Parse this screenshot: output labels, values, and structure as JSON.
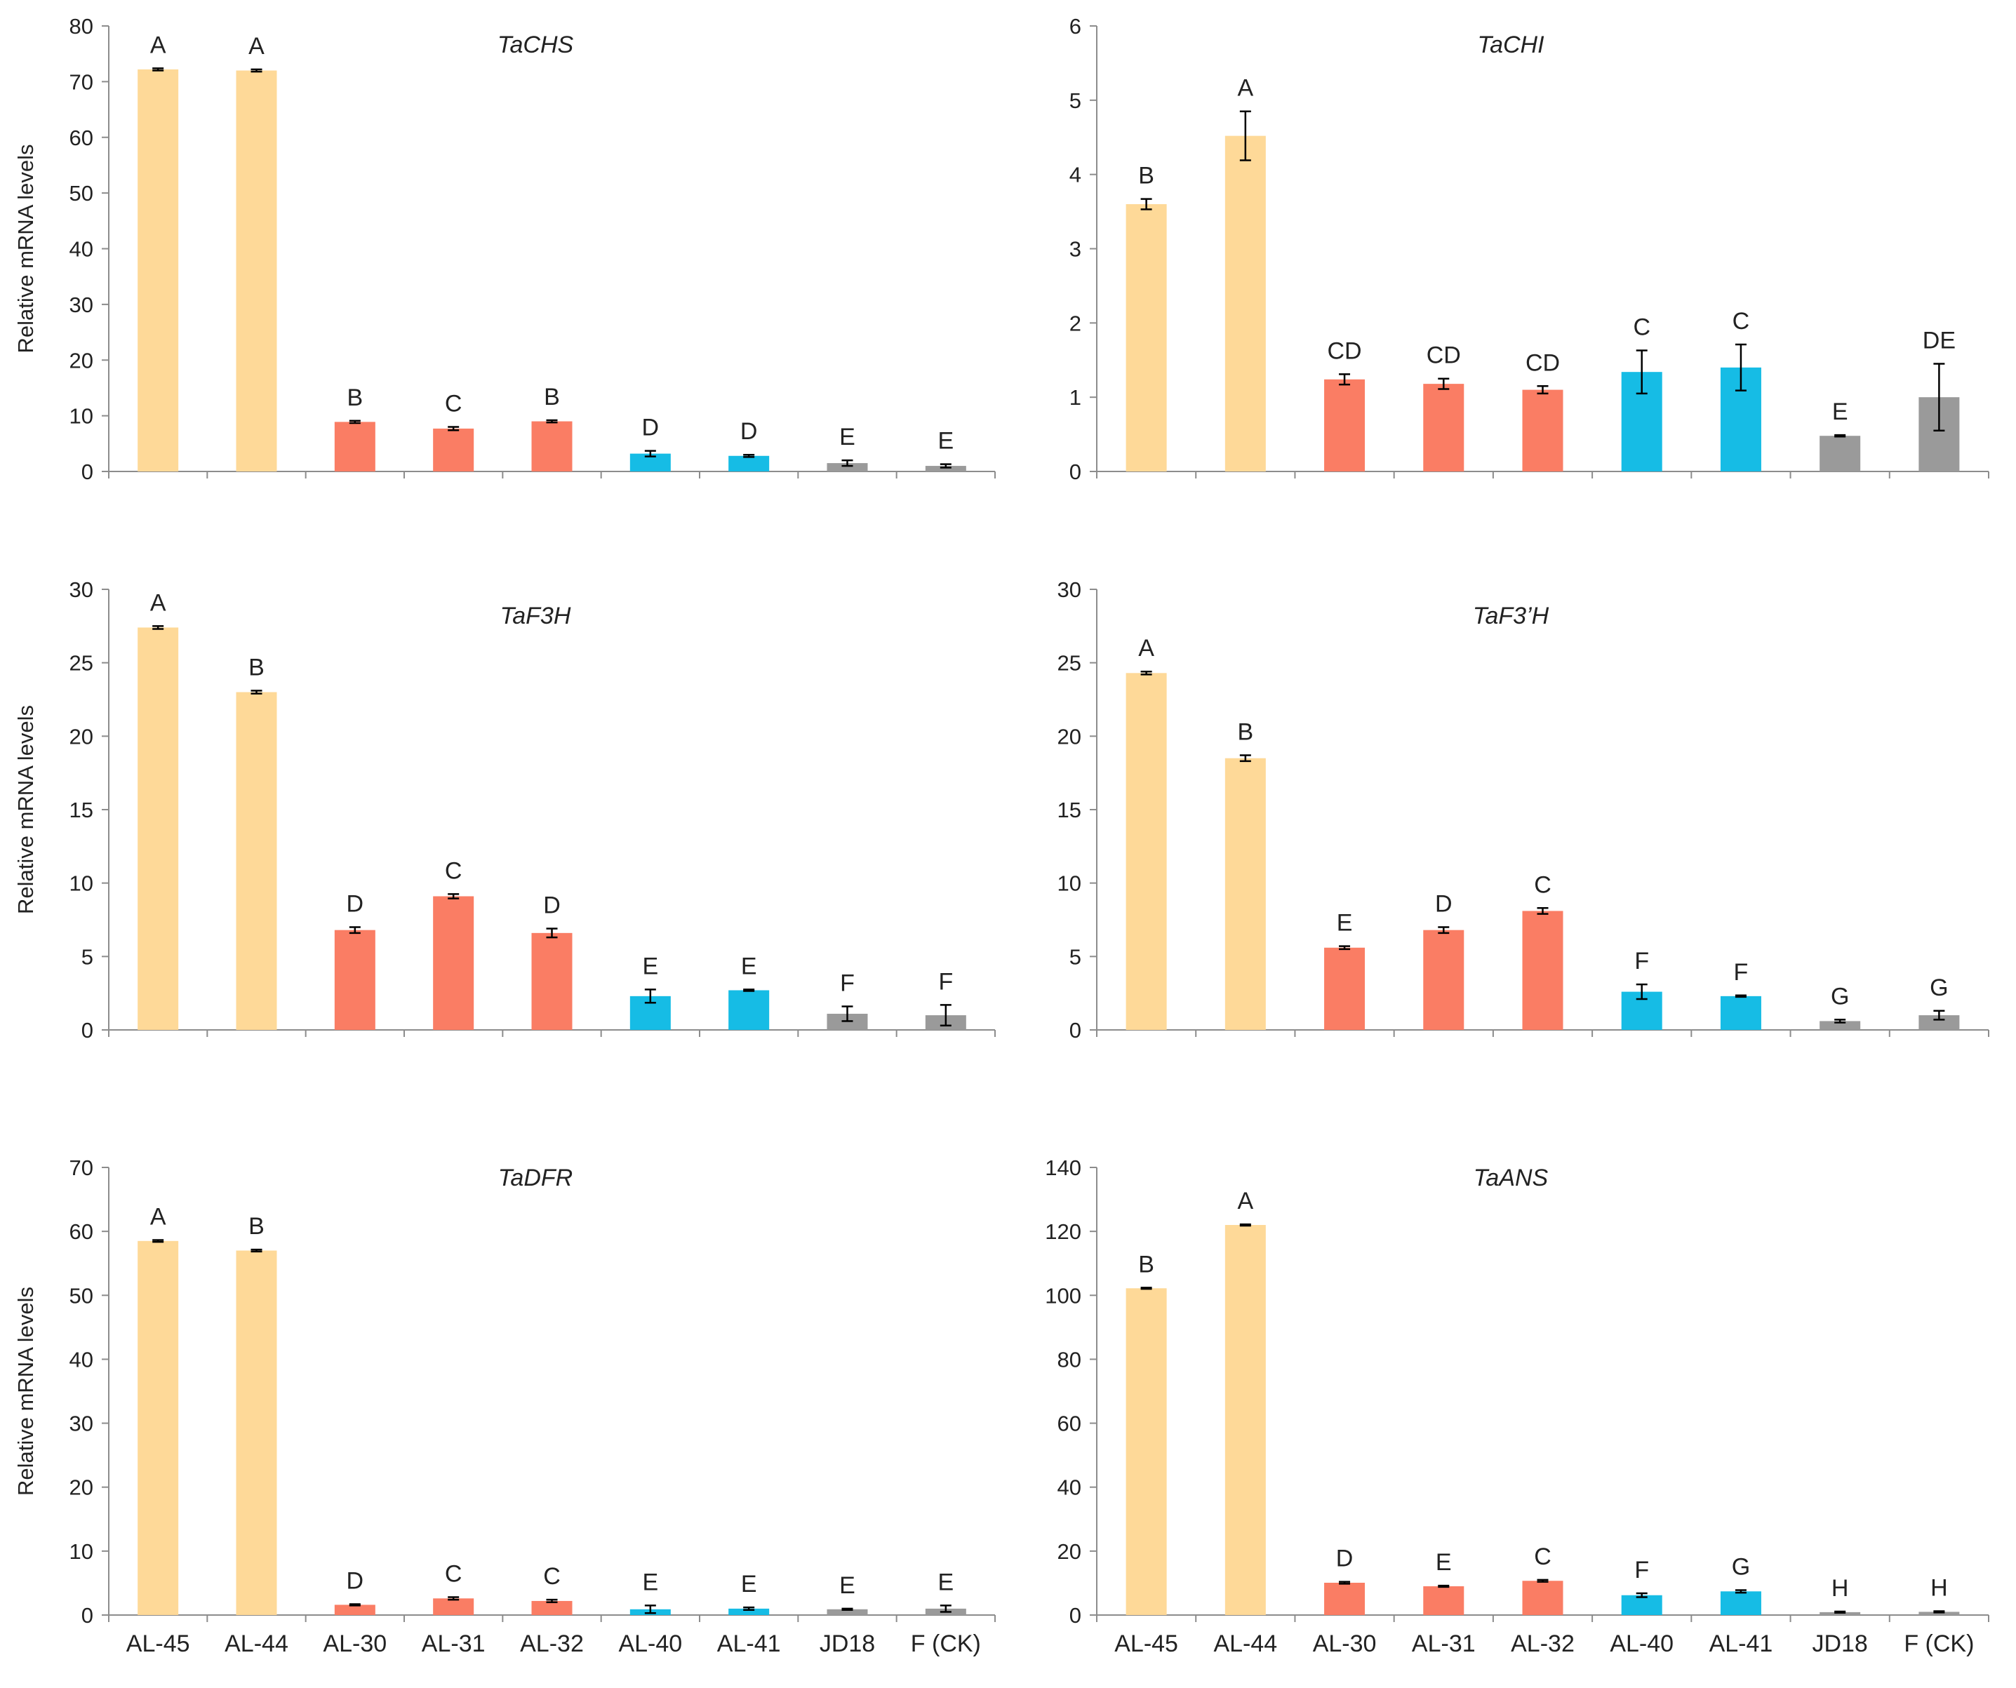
{
  "colors": {
    "AL-45": "#fed998",
    "AL-44": "#fed998",
    "AL-30": "#fa7d64",
    "AL-31": "#fa7d64",
    "AL-32": "#fa7d64",
    "AL-40": "#16bce5",
    "AL-41": "#16bce5",
    "JD18": "#9a9a9a",
    "F (CK)": "#9a9a9a",
    "axis": "#8c8c8c",
    "errorbar": "#000000"
  },
  "chart_data": [
    {
      "type": "bar",
      "title": "TaCHS",
      "ylabel": "Relative mRNA levels",
      "xlabel": "",
      "ylim": [
        0,
        80
      ],
      "yticks": [
        "0",
        "10",
        "20",
        "30",
        "40",
        "50",
        "60",
        "70",
        "80"
      ],
      "categories": [
        "AL-45",
        "AL-44",
        "AL-30",
        "AL-31",
        "AL-32",
        "AL-40",
        "AL-41",
        "JD18",
        "F (CK)"
      ],
      "values": [
        72.2,
        72.0,
        8.9,
        7.7,
        9.0,
        3.2,
        2.8,
        1.5,
        1.0
      ],
      "errors": [
        0.2,
        0.2,
        0.2,
        0.3,
        0.2,
        0.5,
        0.2,
        0.5,
        0.3
      ],
      "letters": [
        "A",
        "A",
        "B",
        "C",
        "B",
        "D",
        "D",
        "E",
        "E"
      ]
    },
    {
      "type": "bar",
      "title": "TaCHI",
      "ylabel": "",
      "xlabel": "",
      "ylim": [
        0,
        6
      ],
      "yticks": [
        "0",
        "1",
        "2",
        "3",
        "4",
        "5",
        "6"
      ],
      "categories": [
        "AL-45",
        "AL-44",
        "AL-30",
        "AL-31",
        "AL-32",
        "AL-40",
        "AL-41",
        "JD18",
        "F (CK)"
      ],
      "values": [
        3.6,
        4.52,
        1.24,
        1.18,
        1.1,
        1.34,
        1.4,
        0.48,
        1.0
      ],
      "errors": [
        0.07,
        0.33,
        0.07,
        0.07,
        0.05,
        0.29,
        0.31,
        0.01,
        0.45
      ],
      "letters": [
        "B",
        "A",
        "CD",
        "CD",
        "CD",
        "C",
        "C",
        "E",
        "DE"
      ]
    },
    {
      "type": "bar",
      "title": "TaF3H",
      "ylabel": "Relative mRNA levels",
      "xlabel": "",
      "ylim": [
        0,
        30
      ],
      "yticks": [
        "0",
        "5",
        "10",
        "15",
        "20",
        "25",
        "30"
      ],
      "categories": [
        "AL-45",
        "AL-44",
        "AL-30",
        "AL-31",
        "AL-32",
        "AL-40",
        "AL-41",
        "JD18",
        "F (CK)"
      ],
      "values": [
        27.4,
        23.0,
        6.8,
        9.1,
        6.6,
        2.3,
        2.7,
        1.1,
        1.0
      ],
      "errors": [
        0.1,
        0.1,
        0.2,
        0.15,
        0.3,
        0.45,
        0.05,
        0.5,
        0.7
      ],
      "letters": [
        "A",
        "B",
        "D",
        "C",
        "D",
        "E",
        "E",
        "F",
        "F"
      ]
    },
    {
      "type": "bar",
      "title": "TaF3’H",
      "ylabel": "",
      "xlabel": "",
      "ylim": [
        0,
        30
      ],
      "yticks": [
        "0",
        "5",
        "10",
        "15",
        "20",
        "25",
        "30"
      ],
      "categories": [
        "AL-45",
        "AL-44",
        "AL-30",
        "AL-31",
        "AL-32",
        "AL-40",
        "AL-41",
        "JD18",
        "F (CK)"
      ],
      "values": [
        24.3,
        18.5,
        5.6,
        6.8,
        8.1,
        2.6,
        2.3,
        0.6,
        1.0
      ],
      "errors": [
        0.1,
        0.2,
        0.1,
        0.2,
        0.2,
        0.5,
        0.05,
        0.1,
        0.3
      ],
      "letters": [
        "A",
        "B",
        "E",
        "D",
        "C",
        "F",
        "F",
        "G",
        "G"
      ]
    },
    {
      "type": "bar",
      "title": "TaDFR",
      "ylabel": "Relative mRNA levels",
      "xlabel": "",
      "ylim": [
        0,
        70
      ],
      "yticks": [
        "0",
        "10",
        "20",
        "30",
        "40",
        "50",
        "60",
        "70"
      ],
      "categories": [
        "AL-45",
        "AL-44",
        "AL-30",
        "AL-31",
        "AL-32",
        "AL-40",
        "AL-41",
        "JD18",
        "F (CK)"
      ],
      "values": [
        58.5,
        57.0,
        1.6,
        2.6,
        2.2,
        0.9,
        1.0,
        0.9,
        1.0
      ],
      "errors": [
        0.15,
        0.15,
        0.1,
        0.2,
        0.2,
        0.6,
        0.2,
        0.1,
        0.5
      ],
      "letters": [
        "A",
        "B",
        "D",
        "C",
        "C",
        "E",
        "E",
        "E",
        "E"
      ]
    },
    {
      "type": "bar",
      "title": "TaANS",
      "ylabel": "",
      "xlabel": "",
      "ylim": [
        0,
        140
      ],
      "yticks": [
        "0",
        "20",
        "40",
        "60",
        "80",
        "100",
        "120",
        "140"
      ],
      "categories": [
        "AL-45",
        "AL-44",
        "AL-30",
        "AL-31",
        "AL-32",
        "AL-40",
        "AL-41",
        "JD18",
        "F (CK)"
      ],
      "values": [
        102.2,
        122.0,
        10.1,
        9.0,
        10.7,
        6.2,
        7.4,
        0.9,
        1.0
      ],
      "errors": [
        0.2,
        0.2,
        0.3,
        0.2,
        0.3,
        0.6,
        0.4,
        0.2,
        0.2
      ],
      "letters": [
        "B",
        "A",
        "D",
        "E",
        "C",
        "F",
        "G",
        "H",
        "H"
      ]
    }
  ]
}
